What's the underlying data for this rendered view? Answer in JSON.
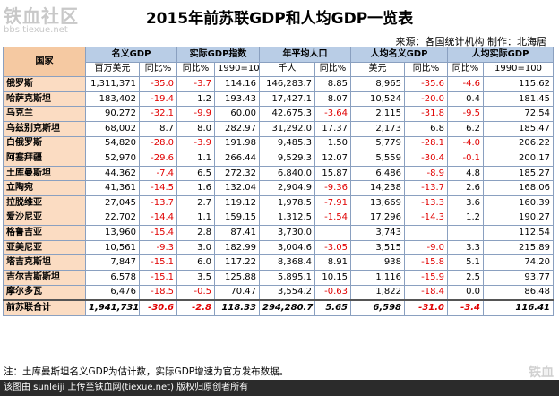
{
  "watermark": {
    "main": "铁血社区",
    "sub": "bbs.tiexue.net"
  },
  "title": "2015年前苏联GDP和人均GDP一览表",
  "source": "来源：各国统计机构 制作：北海居",
  "headers": {
    "country": "国家",
    "groups": [
      "名义GDP",
      "实际GDP指数",
      "年平均人口",
      "人均名义GDP",
      "人均实际GDP"
    ],
    "subs": [
      "百万美元",
      "同比%",
      "同比%",
      "1990=100",
      "千人",
      "同比%",
      "美元",
      "同比%",
      "同比%",
      "1990=100"
    ]
  },
  "rows": [
    {
      "country": "俄罗斯",
      "v": [
        "1,311,371",
        "-35.0",
        "-3.7",
        "114.16",
        "146,283.7",
        "8.85",
        "8,965",
        "-35.6",
        "-4.6",
        "115.62"
      ]
    },
    {
      "country": "哈萨克斯坦",
      "v": [
        "183,402",
        "-19.4",
        "1.2",
        "193.43",
        "17,427.1",
        "8.07",
        "10,524",
        "-20.0",
        "0.4",
        "181.45"
      ]
    },
    {
      "country": "乌克兰",
      "v": [
        "90,272",
        "-32.1",
        "-9.9",
        "60.00",
        "42,675.3",
        "-3.64",
        "2,115",
        "-31.8",
        "-9.5",
        "72.54"
      ]
    },
    {
      "country": "乌兹别克斯坦",
      "v": [
        "68,002",
        "8.7",
        "8.0",
        "282.97",
        "31,292.0",
        "17.37",
        "2,173",
        "6.8",
        "6.2",
        "185.47"
      ]
    },
    {
      "country": "白俄罗斯",
      "v": [
        "54,820",
        "-28.0",
        "-3.9",
        "191.98",
        "9,485.3",
        "1.50",
        "5,779",
        "-28.1",
        "-4.0",
        "206.22"
      ]
    },
    {
      "country": "阿塞拜疆",
      "v": [
        "52,970",
        "-29.6",
        "1.1",
        "266.44",
        "9,529.3",
        "12.07",
        "5,559",
        "-30.4",
        "-0.1",
        "200.17"
      ]
    },
    {
      "country": "土库曼斯坦",
      "v": [
        "44,362",
        "-7.4",
        "6.5",
        "272.32",
        "6,840.0",
        "15.87",
        "6,486",
        "-8.9",
        "4.8",
        "185.27"
      ]
    },
    {
      "country": "立陶宛",
      "v": [
        "41,361",
        "-14.5",
        "1.6",
        "132.04",
        "2,904.9",
        "-9.36",
        "14,238",
        "-13.7",
        "2.6",
        "168.06"
      ]
    },
    {
      "country": "拉脱维亚",
      "v": [
        "27,045",
        "-13.7",
        "2.7",
        "119.12",
        "1,978.5",
        "-7.91",
        "13,669",
        "-13.3",
        "3.6",
        "160.39"
      ]
    },
    {
      "country": "爱沙尼亚",
      "v": [
        "22,702",
        "-14.4",
        "1.1",
        "159.15",
        "1,312.5",
        "-1.54",
        "17,296",
        "-14.3",
        "1.2",
        "190.27"
      ]
    },
    {
      "country": "格鲁吉亚",
      "v": [
        "13,960",
        "-15.4",
        "2.8",
        "87.41",
        "3,730.0",
        "",
        "3,743",
        "",
        "",
        "112.54"
      ]
    },
    {
      "country": "亚美尼亚",
      "v": [
        "10,561",
        "-9.3",
        "3.0",
        "182.99",
        "3,004.6",
        "-3.05",
        "3,515",
        "-9.0",
        "3.3",
        "215.89"
      ]
    },
    {
      "country": "塔吉克斯坦",
      "v": [
        "7,847",
        "-15.1",
        "6.0",
        "117.22",
        "8,368.4",
        "8.91",
        "938",
        "-15.8",
        "5.1",
        "74.20"
      ]
    },
    {
      "country": "吉尔吉斯斯坦",
      "v": [
        "6,578",
        "-15.1",
        "3.5",
        "125.88",
        "5,895.1",
        "10.15",
        "1,116",
        "-15.9",
        "2.5",
        "93.77"
      ]
    },
    {
      "country": "摩尔多瓦",
      "v": [
        "6,476",
        "-18.5",
        "-0.5",
        "70.47",
        "3,554.2",
        "-0.63",
        "1,822",
        "-18.4",
        "0.0",
        "86.48"
      ]
    }
  ],
  "total": {
    "country": "前苏联合计",
    "v": [
      "1,941,731",
      "-30.6",
      "-2.8",
      "118.33",
      "294,280.7",
      "5.65",
      "6,598",
      "-31.0",
      "-3.4",
      "116.41"
    ]
  },
  "note": "注：土库曼斯坦名义GDP为估计数，实际GDP增速为官方发布数据。",
  "footer": "该图由 sunleiji 上传至铁血网(tiexue.net) 版权归原创者所有",
  "colors": {
    "negative": "#e00000",
    "header_bg": "#b9cde6",
    "country_bg": "#fbdcc2"
  }
}
